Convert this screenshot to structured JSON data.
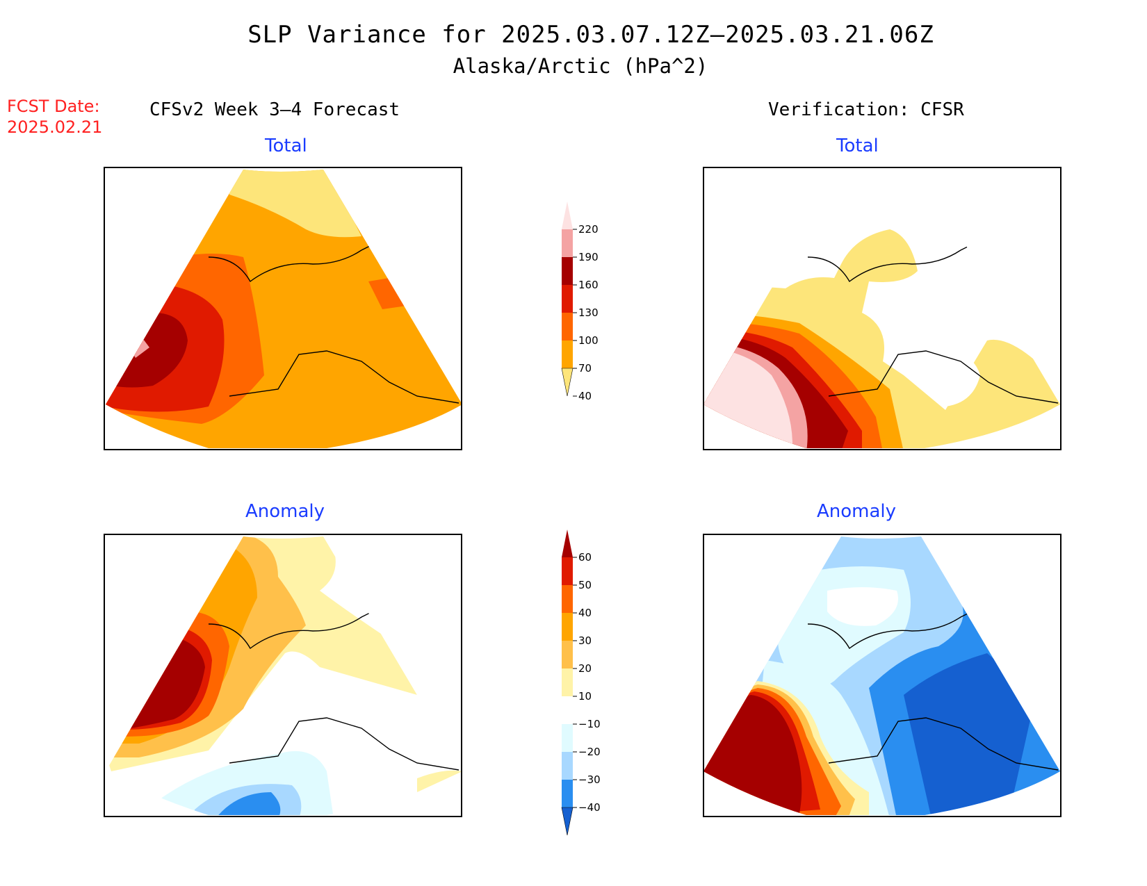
{
  "title": "SLP Variance for 2025.03.07.12Z–2025.03.21.06Z",
  "subtitle": "Alaska/Arctic (hPa^2)",
  "fcst_label": "FCST Date:",
  "fcst_date": "2025.02.21",
  "left_heading": "CFSv2 Week 3–4 Forecast",
  "right_heading": "Verification: CFSR",
  "panels": {
    "top_left_title": "Total",
    "top_right_title": "Total",
    "bottom_left_title": "Anomaly",
    "bottom_right_title": "Anomaly"
  },
  "colorbar_total": {
    "labels": [
      "220",
      "190",
      "160",
      "130",
      "100",
      "70",
      "40"
    ],
    "colors": [
      "#fde2e2",
      "#f4a3a3",
      "#a50000",
      "#e01a00",
      "#ff6600",
      "#ffa500",
      "#fde57a"
    ]
  },
  "colorbar_anomaly": {
    "labels": [
      "60",
      "50",
      "40",
      "30",
      "20",
      "10",
      "−10",
      "−20",
      "−30",
      "−40"
    ],
    "colors": [
      "#a50000",
      "#e01a00",
      "#ff6600",
      "#ffa500",
      "#ffc04a",
      "#fff3a8",
      "#ffffff",
      "#e0fbff",
      "#a8d8ff",
      "#2a8ef0",
      "#1560d0"
    ]
  }
}
